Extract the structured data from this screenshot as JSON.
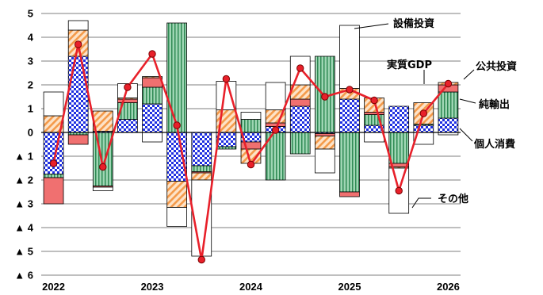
{
  "chart_data": {
    "type": "bar",
    "stacked": true,
    "ylim": [
      -6,
      5
    ],
    "grid": true,
    "y_ticks": [
      {
        "value": 5,
        "label": "5"
      },
      {
        "value": 4,
        "label": "4"
      },
      {
        "value": 3,
        "label": "3"
      },
      {
        "value": 2,
        "label": "2"
      },
      {
        "value": 1,
        "label": "1"
      },
      {
        "value": 0,
        "label": "0"
      },
      {
        "value": -1,
        "label": "▲ 1"
      },
      {
        "value": -2,
        "label": "▲ 2"
      },
      {
        "value": -3,
        "label": "▲ 3"
      },
      {
        "value": -4,
        "label": "▲ 4"
      },
      {
        "value": -5,
        "label": "▲ 5"
      },
      {
        "value": -6,
        "label": "▲ 6"
      }
    ],
    "x_ticks": [
      {
        "index": 0,
        "label": "2022"
      },
      {
        "index": 4,
        "label": "2023"
      },
      {
        "index": 8,
        "label": "2024"
      },
      {
        "index": 12,
        "label": "2025"
      },
      {
        "index": 16,
        "label": "2026"
      }
    ],
    "periods": 17,
    "series": [
      {
        "name": "個人消費",
        "style": "blue-check",
        "values": [
          -1.75,
          3.2,
          0.05,
          0.55,
          1.2,
          -2.05,
          -1.4,
          -0.6,
          -0.4,
          0.25,
          1.1,
          -0.05,
          1.4,
          0.3,
          1.1,
          0.3,
          0.6
        ]
      },
      {
        "name": "純輸出",
        "style": "green-stripe",
        "values": [
          -0.15,
          -0.1,
          -2.25,
          0.7,
          0.7,
          4.6,
          -0.25,
          -0.1,
          0.55,
          -2.0,
          -0.9,
          3.2,
          -2.5,
          0.45,
          -1.3,
          0.05,
          1.1
        ]
      },
      {
        "name": "公共投資",
        "style": "red-solid",
        "values": [
          -1.1,
          -0.4,
          -0.05,
          0.15,
          0.4,
          0.0,
          -0.05,
          0.0,
          -0.3,
          0.15,
          0.3,
          -0.1,
          -0.2,
          0.1,
          -0.15,
          0.0,
          0.3
        ]
      },
      {
        "name": "設備投資",
        "style": "orange-hatch",
        "values": [
          0.7,
          1.1,
          0.85,
          0.05,
          0.05,
          -1.1,
          -0.3,
          0.95,
          -0.6,
          0.55,
          0.6,
          -0.55,
          0.45,
          0.6,
          -0.05,
          0.9,
          0.1
        ]
      },
      {
        "name": "その他",
        "style": "white",
        "values": [
          1.0,
          0.4,
          -0.15,
          0.6,
          -0.4,
          -0.8,
          -3.2,
          1.2,
          0.3,
          1.15,
          1.2,
          -1.0,
          2.65,
          -0.4,
          -1.9,
          -0.5,
          -0.1
        ]
      }
    ],
    "line": {
      "name": "実質GDP",
      "color": "#e8202a",
      "values": [
        -1.3,
        3.7,
        -1.45,
        1.9,
        3.3,
        0.3,
        -5.35,
        2.25,
        -1.35,
        0.1,
        2.7,
        1.5,
        1.8,
        1.35,
        -2.45,
        0.8,
        2.05
      ]
    },
    "annotations": [
      {
        "text": "設備投資"
      },
      {
        "text": "実質GDP"
      },
      {
        "text": "公共投資"
      },
      {
        "text": "純輸出"
      },
      {
        "text": "個人消費"
      },
      {
        "text": "その他"
      }
    ]
  }
}
